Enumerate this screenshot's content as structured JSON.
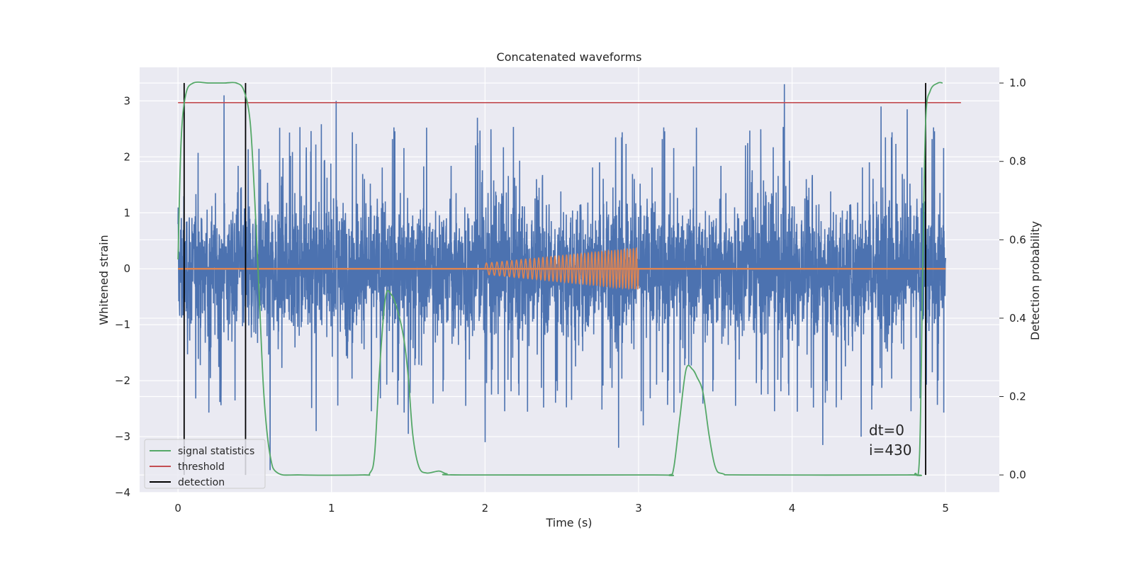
{
  "colors": {
    "background": "#eaeaf2",
    "grid": "#ffffff",
    "strain": "#4c72b0",
    "injection": "#dd8452",
    "signal_statistics": "#55a868",
    "threshold": "#c44e52",
    "detection": "#000000"
  },
  "chart_data": {
    "type": "line",
    "title": "Concatenated waveforms",
    "xlabel": "Time (s)",
    "ylabel": "Whitened strain",
    "ylabel_right": "Detection probability",
    "xlim": [
      -0.25,
      5.35
    ],
    "ylim": [
      -4,
      3.6
    ],
    "ylim_right": [
      -0.045,
      1.04
    ],
    "x_ticks": [
      0,
      1,
      2,
      3,
      4,
      5
    ],
    "y_ticks": [
      -4,
      -3,
      -2,
      -1,
      0,
      1,
      2,
      3
    ],
    "y_ticks_right": [
      0.0,
      0.2,
      0.4,
      0.6,
      0.8,
      1.0
    ],
    "x_tick_labels": [
      "0",
      "1",
      "2",
      "3",
      "4",
      "5"
    ],
    "y_tick_labels": [
      "−4",
      "−3",
      "−2",
      "−1",
      "0",
      "1",
      "2",
      "3"
    ],
    "y_tick_labels_right": [
      "0.0",
      "0.2",
      "0.4",
      "0.6",
      "0.8",
      "1.0"
    ],
    "grid": true,
    "legend_position": "lower-left",
    "legend": [
      {
        "label": "signal statistics",
        "color": "#55a868"
      },
      {
        "label": "threshold",
        "color": "#c44e52"
      },
      {
        "label": "detection",
        "color": "#000000"
      }
    ],
    "strain_noise": {
      "x_range": [
        0,
        5
      ],
      "typical_range": [
        -1.3,
        1.3
      ],
      "spike_max": 3.3,
      "spike_min": -3.7,
      "peaks": [
        {
          "x": 0.3,
          "y": 3.1
        },
        {
          "x": 1.03,
          "y": 3.0
        },
        {
          "x": 1.95,
          "y": 2.7
        },
        {
          "x": 3.95,
          "y": 3.3
        },
        {
          "x": 4.58,
          "y": 2.9
        },
        {
          "x": 4.75,
          "y": 2.85
        },
        {
          "x": 0.6,
          "y": -3.6
        },
        {
          "x": 0.9,
          "y": -2.9
        },
        {
          "x": 1.5,
          "y": -2.95
        },
        {
          "x": 2.0,
          "y": -3.1
        },
        {
          "x": 2.87,
          "y": -3.2
        },
        {
          "x": 3.03,
          "y": -2.8
        },
        {
          "x": 4.2,
          "y": -3.15
        },
        {
          "x": 4.45,
          "y": -3.0
        }
      ]
    },
    "injection": {
      "name": "injected chirp",
      "x_range": [
        2.0,
        3.0
      ],
      "start_amplitude": 0.1,
      "end_amplitude": 0.37,
      "cycles": 40
    },
    "threshold_value": 0.95,
    "threshold_x_range": [
      0,
      5.1
    ],
    "signal_statistics": [
      [
        0.0,
        0.55
      ],
      [
        0.02,
        0.85
      ],
      [
        0.05,
        0.97
      ],
      [
        0.1,
        1.0
      ],
      [
        0.2,
        1.0
      ],
      [
        0.3,
        1.0
      ],
      [
        0.38,
        1.0
      ],
      [
        0.43,
        0.98
      ],
      [
        0.47,
        0.9
      ],
      [
        0.5,
        0.7
      ],
      [
        0.53,
        0.45
      ],
      [
        0.56,
        0.2
      ],
      [
        0.6,
        0.05
      ],
      [
        0.65,
        0.005
      ],
      [
        0.8,
        0.0
      ],
      [
        1.2,
        0.0
      ],
      [
        1.25,
        0.005
      ],
      [
        1.28,
        0.05
      ],
      [
        1.31,
        0.25
      ],
      [
        1.35,
        0.45
      ],
      [
        1.39,
        0.46
      ],
      [
        1.43,
        0.42
      ],
      [
        1.47,
        0.35
      ],
      [
        1.5,
        0.25
      ],
      [
        1.53,
        0.1
      ],
      [
        1.57,
        0.02
      ],
      [
        1.62,
        0.005
      ],
      [
        1.7,
        0.01
      ],
      [
        1.75,
        0.003
      ],
      [
        1.85,
        0.0
      ],
      [
        3.1,
        0.0
      ],
      [
        3.2,
        0.0
      ],
      [
        3.23,
        0.02
      ],
      [
        3.27,
        0.15
      ],
      [
        3.31,
        0.27
      ],
      [
        3.35,
        0.27
      ],
      [
        3.38,
        0.25
      ],
      [
        3.42,
        0.21
      ],
      [
        3.46,
        0.1
      ],
      [
        3.5,
        0.02
      ],
      [
        3.55,
        0.003
      ],
      [
        3.7,
        0.0
      ],
      [
        4.75,
        0.0
      ],
      [
        4.8,
        0.003
      ],
      [
        4.83,
        0.05
      ],
      [
        4.85,
        0.5
      ],
      [
        4.87,
        0.9
      ],
      [
        4.9,
        0.98
      ],
      [
        4.95,
        1.0
      ],
      [
        4.98,
        1.0
      ]
    ],
    "detections": [
      0.04,
      0.44,
      4.87
    ],
    "annotation_lines": [
      "dt=0",
      "i=430"
    ]
  }
}
